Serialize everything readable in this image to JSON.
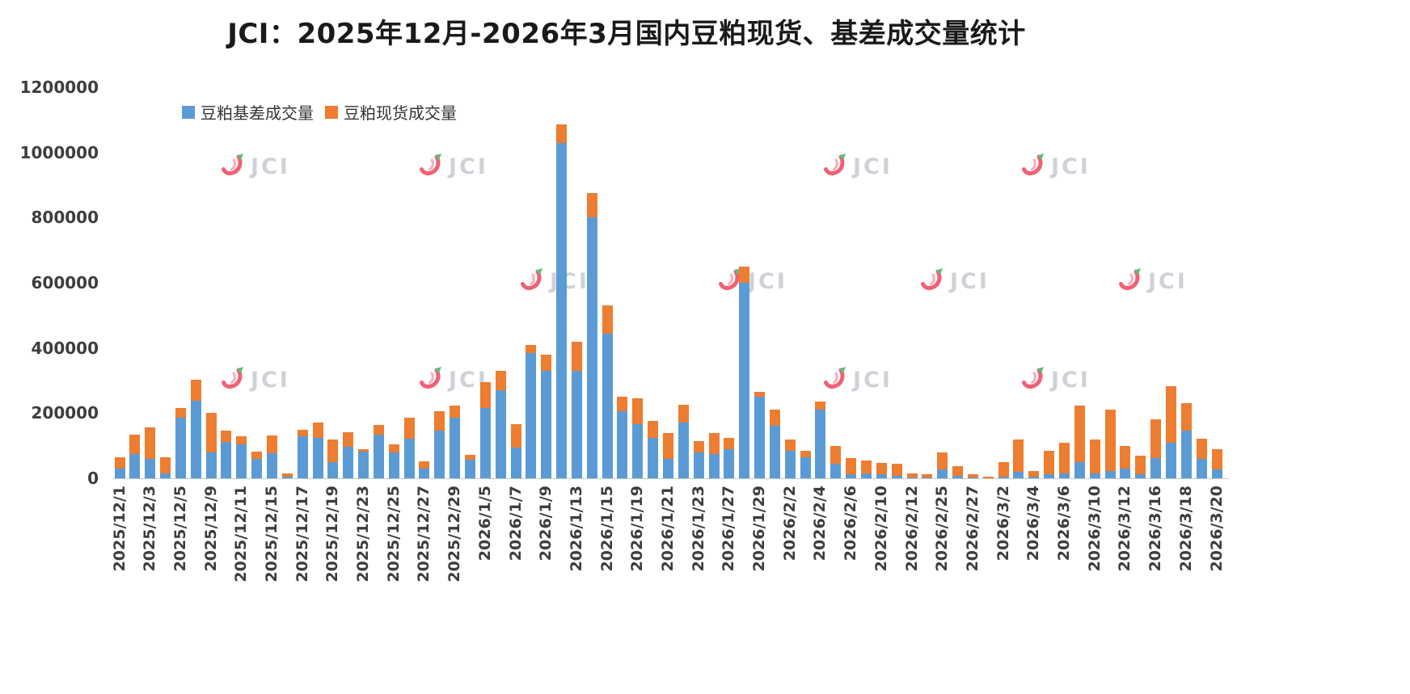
{
  "title": "JCI：2025年12月-2026年3月国内豆粕现货、基差成交量统计",
  "watermark": {
    "text": "JCI"
  },
  "colors": {
    "basis": "#5B9BD5",
    "spot": "#ED7D31",
    "axis_text": "#3d3d3d"
  },
  "legend": [
    {
      "label": "豆粕基差成交量",
      "color": "#5B9BD5"
    },
    {
      "label": "豆粕现货成交量",
      "color": "#ED7D31"
    }
  ],
  "chart_data": {
    "type": "bar",
    "stacked": true,
    "title": "JCI：2025年12月-2026年3月国内豆粕现货、基差成交量统计",
    "xlabel": "",
    "ylabel": "",
    "ylim": [
      0,
      1200000
    ],
    "y_ticks": [
      0,
      200000,
      400000,
      600000,
      800000,
      1000000,
      1200000
    ],
    "grid": false,
    "legend_position": "top-left",
    "categories": [
      "2025/12/1",
      "",
      "2025/12/3",
      "",
      "2025/12/5",
      "",
      "2025/12/9",
      "",
      "2025/12/11",
      "",
      "2025/12/15",
      "",
      "2025/12/17",
      "",
      "2025/12/19",
      "",
      "2025/12/23",
      "",
      "2025/12/25",
      "",
      "2025/12/27",
      "",
      "2025/12/29",
      "",
      "2026/1/5",
      "",
      "2026/1/7",
      "",
      "2026/1/9",
      "",
      "2026/1/13",
      "",
      "2026/1/15",
      "",
      "2026/1/19",
      "",
      "2026/1/21",
      "",
      "2026/1/23",
      "",
      "2026/1/27",
      "",
      "2026/1/29",
      "",
      "2026/2/2",
      "",
      "2026/2/4",
      "",
      "2026/2/6",
      "",
      "2026/2/10",
      "",
      "2026/2/12",
      "",
      "2026/2/25",
      "",
      "2026/2/27",
      "",
      "2026/3/2",
      "",
      "2026/3/4",
      "",
      "2026/3/6",
      "",
      "2026/3/10",
      "",
      "2026/3/12",
      "",
      "2026/3/16",
      "",
      "2026/3/18",
      "",
      "2026/3/20"
    ],
    "series": [
      {
        "name": "豆粕基差成交量",
        "color": "#5B9BD5",
        "values": [
          30000,
          75000,
          60000,
          15000,
          185000,
          237000,
          80000,
          112000,
          103000,
          60000,
          76000,
          5000,
          128000,
          124000,
          50000,
          96000,
          82000,
          134000,
          80000,
          121000,
          30000,
          146000,
          186000,
          57000,
          215000,
          270000,
          95000,
          385000,
          330000,
          1030000,
          330000,
          800000,
          445000,
          205000,
          165000,
          125000,
          60000,
          170000,
          80000,
          75000,
          90000,
          600000,
          250000,
          160000,
          85000,
          65000,
          210000,
          45000,
          12000,
          15000,
          12000,
          8000,
          3000,
          2000,
          28000,
          8000,
          2000,
          1000,
          6000,
          20000,
          5000,
          12000,
          15000,
          50000,
          15000,
          22000,
          30000,
          12000,
          62000,
          108000,
          147000,
          60000,
          28000
        ]
      },
      {
        "name": "豆粕现货成交量",
        "color": "#ED7D31",
        "values": [
          35000,
          60000,
          95000,
          50000,
          30000,
          65000,
          120000,
          35000,
          27000,
          22000,
          55000,
          10000,
          22000,
          47000,
          69000,
          45000,
          8000,
          30000,
          24000,
          65000,
          22000,
          61000,
          36000,
          14000,
          80000,
          60000,
          70000,
          25000,
          50000,
          55000,
          90000,
          75000,
          85000,
          45000,
          80000,
          50000,
          80000,
          55000,
          35000,
          65000,
          35000,
          50000,
          15000,
          50000,
          35000,
          20000,
          25000,
          55000,
          50000,
          40000,
          36000,
          37000,
          12000,
          10000,
          52000,
          30000,
          10000,
          5000,
          44000,
          100000,
          17000,
          73000,
          95000,
          172000,
          105000,
          188000,
          70000,
          58000,
          118000,
          174000,
          83000,
          62000,
          62000
        ]
      }
    ]
  }
}
